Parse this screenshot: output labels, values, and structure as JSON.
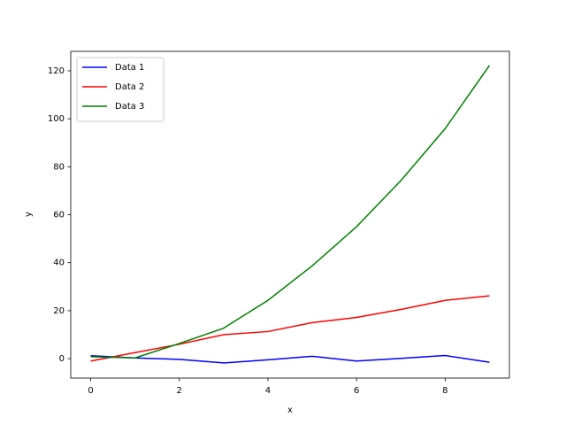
{
  "chart_data": {
    "type": "line",
    "x": [
      0,
      1,
      2,
      3,
      4,
      5,
      6,
      7,
      8,
      9
    ],
    "series": [
      {
        "name": "Data 1",
        "color": "#0000ff",
        "values": [
          1.2,
          0.3,
          -0.3,
          -1.8,
          -0.5,
          1.0,
          -1.0,
          0.1,
          1.3,
          -1.5
        ]
      },
      {
        "name": "Data 2",
        "color": "#ff0000",
        "values": [
          -1.0,
          2.5,
          6.0,
          10.0,
          11.3,
          15.0,
          17.2,
          20.5,
          24.3,
          26.2
        ]
      },
      {
        "name": "Data 3",
        "color": "#008000",
        "values": [
          0.8,
          0.3,
          6.3,
          12.7,
          24.3,
          38.7,
          55.0,
          74.2,
          95.9,
          122.2
        ]
      }
    ],
    "xlabel": "x",
    "ylabel": "y",
    "xlim": [
      -0.45,
      9.45
    ],
    "xticks": [
      0,
      2,
      4,
      6,
      8
    ],
    "ylim": [
      -8.1,
      128.1
    ],
    "yticks": [
      0,
      20,
      40,
      60,
      80,
      100,
      120
    ],
    "legend": "upper left"
  }
}
